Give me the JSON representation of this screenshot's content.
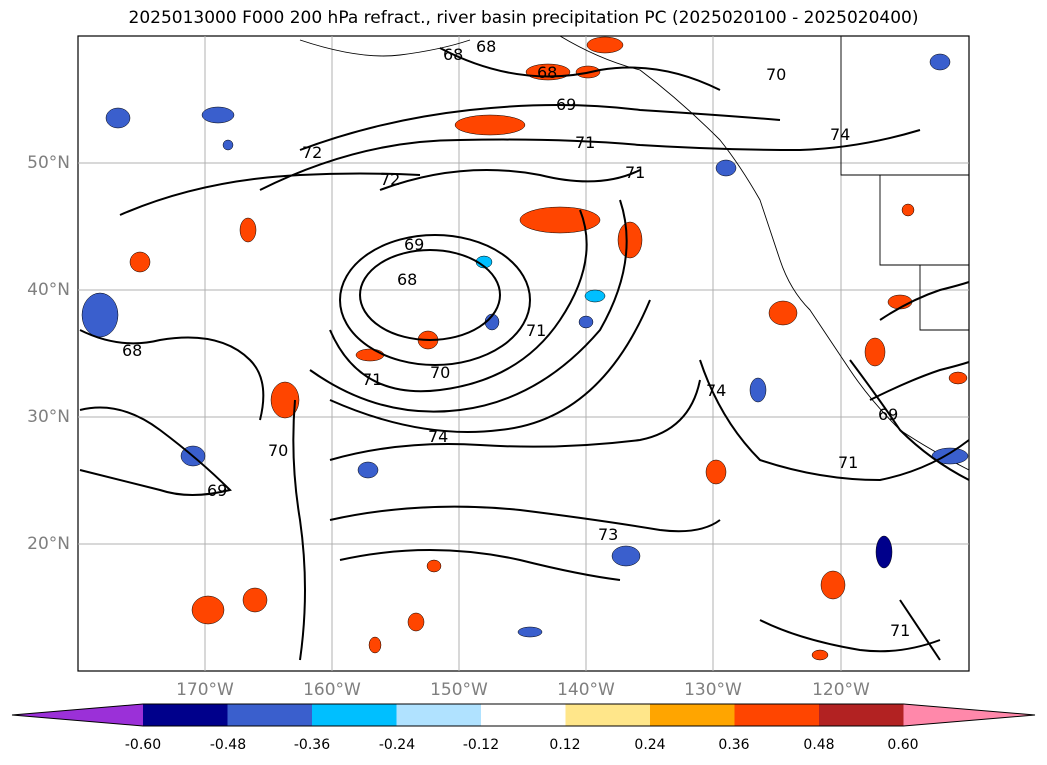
{
  "title": "2025013000 F000 200 hPa refract., river basin precipitation PC (2025020100 - 2025020400)",
  "lat_labels": [
    "50°N",
    "40°N",
    "30°N",
    "20°N"
  ],
  "lon_labels": [
    "170°W",
    "160°W",
    "150°W",
    "140°W",
    "130°W",
    "120°W"
  ],
  "contour_labels": [
    "68",
    "68",
    "68",
    "70",
    "69",
    "71",
    "74",
    "72",
    "72",
    "71",
    "69",
    "68",
    "71",
    "70",
    "74",
    "74",
    "68",
    "71",
    "69",
    "71",
    "70",
    "69",
    "73",
    "71"
  ],
  "colorbar": {
    "ticks": [
      "-0.60",
      "-0.48",
      "-0.36",
      "-0.24",
      "-0.12",
      "0.12",
      "0.24",
      "0.36",
      "0.48",
      "0.60"
    ],
    "colors": [
      "#9b30d8",
      "#00008b",
      "#3a5fcd",
      "#00bfff",
      "#b0e2ff",
      "#ffffff",
      "#ffe68a",
      "#ffa500",
      "#ff4500",
      "#b22222",
      "#ff88aa"
    ]
  }
}
